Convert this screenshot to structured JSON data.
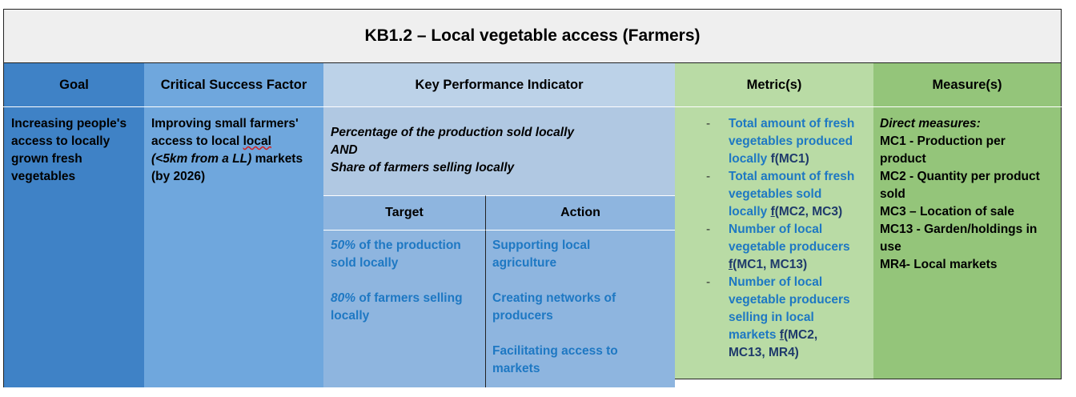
{
  "title": "KB1.2 – Local vegetable access (Farmers)",
  "colors": {
    "goal": "#3f82c6",
    "csf": "#6fa7dd",
    "kpi_header": "#bcd2e8",
    "kpi_body": "#b0c8e2",
    "target_action": "#8eb5df",
    "metric": "#b9dba5",
    "measure": "#94c57a",
    "link_blue": "#1e78c3"
  },
  "headers": {
    "goal": "Goal",
    "csf": "Critical Success Factor",
    "kpi": "Key Performance Indicator",
    "metrics": "Metric(s)",
    "measures": "Measure(s)",
    "target": "Target",
    "action": "Action"
  },
  "goal": {
    "lines": [
      "Increasing people's",
      "access to locally",
      "grown fresh",
      "vegetables"
    ]
  },
  "csf": {
    "line1": "Improving small farmers'",
    "line2_a": "access to local ",
    "line2_b": "local",
    "line3_a": "(<5km from a LL)",
    "line3_b": " markets",
    "line4": "(by 2026)"
  },
  "kpi": {
    "line1": "Percentage of the production sold locally",
    "line2": "AND",
    "line3": "Share of farmers selling locally"
  },
  "targets": [
    {
      "pct": "50%",
      "rest1": " of the production",
      "rest2": "sold locally"
    },
    {
      "pct": "80%",
      "rest1": " of farmers selling",
      "rest2": "locally"
    }
  ],
  "actions": [
    {
      "l1": "Supporting local",
      "l2": "agriculture"
    },
    {
      "l1": "Creating networks of",
      "l2": "producers"
    },
    {
      "l1": "Facilitating access to",
      "l2": "markets"
    }
  ],
  "metrics": [
    {
      "dash": "-",
      "l1": "Total amount of fresh",
      "l2": "vegetables produced",
      "l3a": "locally ",
      "f": "f",
      "l3b": "(MC1)"
    },
    {
      "dash": "-",
      "l1": "Total amount of fresh",
      "l2": "vegetables sold",
      "l3a": "locally ",
      "f": "f",
      "l3b": "(MC2, MC3)"
    },
    {
      "dash": "-",
      "l1": "Number of local",
      "l2": "vegetable producers",
      "l3a": "",
      "f": "f",
      "l3b": "(MC1, MC13)"
    },
    {
      "dash": "-",
      "l1": "Number of local",
      "l2": "vegetable producers",
      "l3": "selling in local",
      "l4a": "markets ",
      "f": "f",
      "l4b": "(MC2,",
      "l5": "MC13, MR4)"
    }
  ],
  "measures": {
    "heading": "Direct measures:",
    "lines": [
      "MC1 - Production per",
      "product",
      "MC2 - Quantity per product",
      "sold",
      "MC3 – Location of sale",
      "MC13 - Garden/holdings in",
      "use",
      "MR4- Local markets"
    ]
  }
}
